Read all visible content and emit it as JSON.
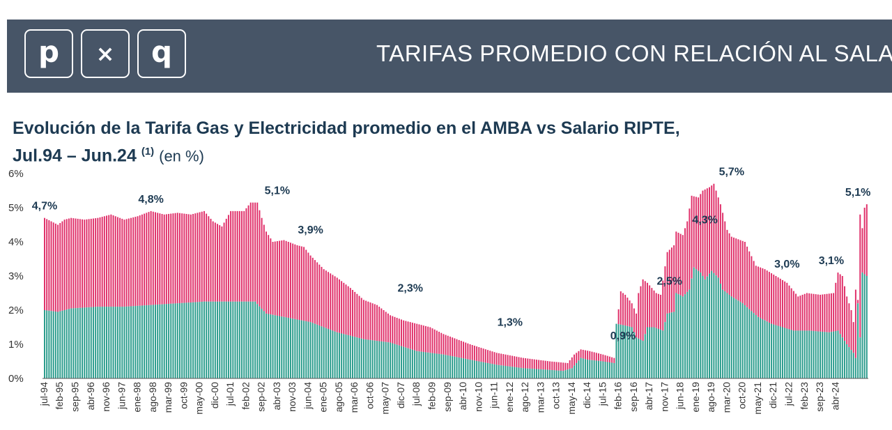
{
  "header": {
    "logo": [
      "p",
      "×",
      "q"
    ],
    "title": "TARIFAS PROMEDIO CON RELACIÓN AL SALARIO"
  },
  "colors": {
    "header_bg": "#475567",
    "gas": "#2a9c8c",
    "electricity": "#e0306a"
  },
  "chart_data": {
    "type": "bar",
    "stacked": true,
    "title": "Evolución de la Tarifa Gas y Electricidad promedio en el AMBA vs Salario RIPTE,",
    "title_line2": "Jul.94 – Jun.24",
    "title_sup": "(1)",
    "title_unit": "(en %)",
    "ylim": [
      0,
      6
    ],
    "y_ticks": [
      "0%",
      "1%",
      "2%",
      "3%",
      "4%",
      "5%",
      "6%"
    ],
    "x_tick_labels": [
      "jul-94",
      "feb-95",
      "sep-95",
      "abr-96",
      "nov-96",
      "jun-97",
      "ene-98",
      "ago-98",
      "mar-99",
      "oct-99",
      "may-00",
      "dic-00",
      "jul-01",
      "feb-02",
      "sep-02",
      "abr-03",
      "nov-03",
      "jun-04",
      "ene-05",
      "ago-05",
      "mar-06",
      "oct-06",
      "may-07",
      "dic-07",
      "jul-08",
      "feb-09",
      "sep-09",
      "abr-10",
      "nov-10",
      "jun-11",
      "ene-12",
      "ago-12",
      "mar-13",
      "oct-13",
      "may-14",
      "dic-14",
      "jul-15",
      "feb-16",
      "sep-16",
      "abr-17",
      "nov-17",
      "jun-18",
      "ene-19",
      "ago-19",
      "mar-20",
      "oct-20",
      "may-21",
      "dic-21",
      "jul-22",
      "feb-23",
      "sep-23",
      "abr-24"
    ],
    "series": [
      {
        "key": "gas",
        "color": "#2a9c8c",
        "anchors": [
          [
            0,
            2.0
          ],
          [
            6,
            1.95
          ],
          [
            12,
            2.05
          ],
          [
            24,
            2.1
          ],
          [
            36,
            2.1
          ],
          [
            48,
            2.15
          ],
          [
            60,
            2.2
          ],
          [
            72,
            2.25
          ],
          [
            84,
            2.25
          ],
          [
            95,
            2.25
          ],
          [
            100,
            1.9
          ],
          [
            108,
            1.8
          ],
          [
            120,
            1.65
          ],
          [
            132,
            1.35
          ],
          [
            144,
            1.15
          ],
          [
            156,
            1.05
          ],
          [
            168,
            0.8
          ],
          [
            180,
            0.7
          ],
          [
            192,
            0.55
          ],
          [
            204,
            0.4
          ],
          [
            216,
            0.3
          ],
          [
            228,
            0.25
          ],
          [
            234,
            0.22
          ],
          [
            238,
            0.3
          ],
          [
            242,
            0.6
          ],
          [
            245,
            0.55
          ],
          [
            252,
            0.5
          ],
          [
            257,
            0.45
          ],
          [
            258,
            1.6
          ],
          [
            262,
            1.55
          ],
          [
            265,
            1.5
          ],
          [
            267,
            1.2
          ],
          [
            270,
            1.1
          ],
          [
            272,
            1.5
          ],
          [
            275,
            1.5
          ],
          [
            279,
            1.4
          ],
          [
            281,
            1.9
          ],
          [
            284,
            1.95
          ],
          [
            285,
            2.5
          ],
          [
            288,
            2.4
          ],
          [
            291,
            2.6
          ],
          [
            293,
            3.25
          ],
          [
            296,
            3.1
          ],
          [
            298,
            2.9
          ],
          [
            301,
            3.15
          ],
          [
            304,
            2.95
          ],
          [
            306,
            2.6
          ],
          [
            310,
            2.4
          ],
          [
            315,
            2.2
          ],
          [
            322,
            1.8
          ],
          [
            328,
            1.6
          ],
          [
            333,
            1.5
          ],
          [
            338,
            1.4
          ],
          [
            345,
            1.4
          ],
          [
            354,
            1.35
          ],
          [
            358,
            1.4
          ],
          [
            362,
            1.0
          ],
          [
            365,
            0.75
          ],
          [
            366,
            0.6
          ],
          [
            367,
            2.2
          ],
          [
            368,
            1.2
          ],
          [
            369,
            3.1
          ],
          [
            371,
            3.0
          ]
        ]
      },
      {
        "key": "total",
        "color": "#e0306a",
        "anchors": [
          [
            0,
            4.7
          ],
          [
            3,
            4.6
          ],
          [
            6,
            4.5
          ],
          [
            9,
            4.65
          ],
          [
            12,
            4.7
          ],
          [
            18,
            4.65
          ],
          [
            24,
            4.7
          ],
          [
            30,
            4.8
          ],
          [
            36,
            4.65
          ],
          [
            42,
            4.75
          ],
          [
            48,
            4.9
          ],
          [
            54,
            4.8
          ],
          [
            60,
            4.85
          ],
          [
            66,
            4.8
          ],
          [
            72,
            4.9
          ],
          [
            76,
            4.6
          ],
          [
            80,
            4.45
          ],
          [
            84,
            4.9
          ],
          [
            90,
            4.9
          ],
          [
            93,
            5.15
          ],
          [
            96,
            5.15
          ],
          [
            98,
            4.7
          ],
          [
            100,
            4.3
          ],
          [
            103,
            4.0
          ],
          [
            108,
            4.05
          ],
          [
            114,
            3.9
          ],
          [
            117,
            3.85
          ],
          [
            120,
            3.6
          ],
          [
            126,
            3.2
          ],
          [
            132,
            2.95
          ],
          [
            138,
            2.65
          ],
          [
            144,
            2.3
          ],
          [
            150,
            2.15
          ],
          [
            156,
            1.85
          ],
          [
            162,
            1.7
          ],
          [
            168,
            1.6
          ],
          [
            174,
            1.5
          ],
          [
            180,
            1.3
          ],
          [
            186,
            1.15
          ],
          [
            192,
            1.0
          ],
          [
            204,
            0.75
          ],
          [
            216,
            0.6
          ],
          [
            228,
            0.5
          ],
          [
            236,
            0.45
          ],
          [
            239,
            0.7
          ],
          [
            242,
            0.85
          ],
          [
            246,
            0.8
          ],
          [
            252,
            0.7
          ],
          [
            257,
            0.6
          ],
          [
            258,
            1.5
          ],
          [
            260,
            2.55
          ],
          [
            262,
            2.45
          ],
          [
            265,
            2.2
          ],
          [
            267,
            1.9
          ],
          [
            268,
            2.5
          ],
          [
            270,
            2.9
          ],
          [
            272,
            2.8
          ],
          [
            276,
            2.5
          ],
          [
            278,
            2.45
          ],
          [
            281,
            3.7
          ],
          [
            284,
            3.9
          ],
          [
            285,
            4.3
          ],
          [
            288,
            4.2
          ],
          [
            290,
            4.6
          ],
          [
            292,
            5.35
          ],
          [
            295,
            5.3
          ],
          [
            297,
            5.5
          ],
          [
            300,
            5.6
          ],
          [
            302,
            5.7
          ],
          [
            305,
            5.1
          ],
          [
            308,
            4.35
          ],
          [
            310,
            4.15
          ],
          [
            316,
            4.0
          ],
          [
            321,
            3.3
          ],
          [
            325,
            3.2
          ],
          [
            330,
            3.0
          ],
          [
            335,
            2.8
          ],
          [
            340,
            2.4
          ],
          [
            344,
            2.5
          ],
          [
            350,
            2.45
          ],
          [
            356,
            2.5
          ],
          [
            358,
            3.1
          ],
          [
            360,
            3.0
          ],
          [
            362,
            2.4
          ],
          [
            364,
            2.0
          ],
          [
            365,
            1.65
          ],
          [
            366,
            2.6
          ],
          [
            367,
            2.3
          ],
          [
            368,
            4.8
          ],
          [
            369,
            4.4
          ],
          [
            370,
            5.0
          ],
          [
            371,
            5.1
          ]
        ]
      }
    ],
    "annotations": [
      {
        "idx": 0,
        "text": "4,7%",
        "y": 4.7
      },
      {
        "idx": 48,
        "text": "4,8%",
        "y": 4.9
      },
      {
        "idx": 105,
        "text": "5,1%",
        "y": 5.15
      },
      {
        "idx": 120,
        "text": "3,9%",
        "y": 4.0
      },
      {
        "idx": 165,
        "text": "2,3%",
        "y": 2.3
      },
      {
        "idx": 210,
        "text": "1,3%",
        "y": 1.3
      },
      {
        "idx": 261,
        "text": "0,9%",
        "y": 0.9
      },
      {
        "idx": 282,
        "text": "2,5%",
        "y": 2.5
      },
      {
        "idx": 298,
        "text": "4,3%",
        "y": 4.3
      },
      {
        "idx": 310,
        "text": "5,7%",
        "y": 5.7
      },
      {
        "idx": 335,
        "text": "3,0%",
        "y": 3.0
      },
      {
        "idx": 355,
        "text": "3,1%",
        "y": 3.1
      },
      {
        "idx": 367,
        "text": "5,1%",
        "y": 5.1
      }
    ]
  }
}
